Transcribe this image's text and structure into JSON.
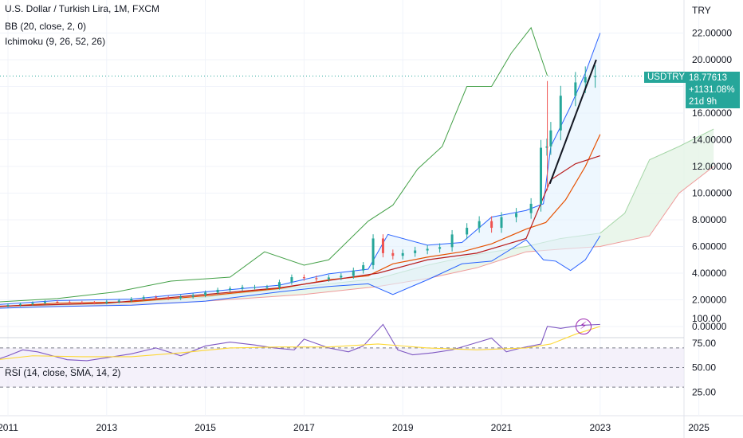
{
  "header": {
    "title": "U.S. Dollar / Turkish Lira, 1M, FXCM",
    "bb": "BB (20, close, 2, 0)",
    "ichimoku": "Ichimoku (9, 26, 52, 26)",
    "rsi": "RSI (14, close, SMA, 14, 2)"
  },
  "price_axis": {
    "currency": "TRY",
    "ticks": [
      "22.00000",
      "20.00000",
      "18.00000",
      "16.00000",
      "14.00000",
      "12.00000",
      "10.00000",
      "8.00000",
      "6.00000",
      "4.00000",
      "2.00000",
      "0.00000"
    ]
  },
  "rsi_axis": {
    "ticks": [
      "100.00",
      "75.00",
      "50.00",
      "25.00"
    ]
  },
  "time_axis": {
    "ticks": [
      "2011",
      "2013",
      "2015",
      "2017",
      "2019",
      "2021",
      "2023",
      "2025"
    ]
  },
  "last_price": {
    "symbol": "USDTRY",
    "price": "18.77613",
    "change": "+1131.08%",
    "countdown": "21d 9h"
  },
  "colors": {
    "up": "#26a69a",
    "down": "#ef5350",
    "bb_basis": "#e65100",
    "bb_band": "#2962ff",
    "ich_conv": "#2962ff",
    "ich_base": "#b71c1c",
    "ich_lag": "#43a047",
    "cloud_a": "#a5d6a7",
    "cloud_b": "#ef9a9a",
    "rsi": "#7e57c2",
    "rsi_ma": "#fdd835",
    "badge": "#26a69a"
  },
  "icons": {
    "flash": "lightning-icon"
  },
  "chart_data": [
    {
      "type": "candlestick",
      "title": "U.S. Dollar / Turkish Lira, 1M, FXCM",
      "y_range": [
        0,
        22
      ],
      "x_range": [
        2010.5,
        2025.3
      ],
      "series": [
        {
          "name": "USDTRY",
          "points": [
            [
              2010.6,
              1.5
            ],
            [
              2011.0,
              1.55
            ],
            [
              2011.5,
              1.68
            ],
            [
              2012.0,
              1.85
            ],
            [
              2012.5,
              1.8
            ],
            [
              2013.0,
              1.78
            ],
            [
              2013.5,
              1.95
            ],
            [
              2014.0,
              2.2
            ],
            [
              2014.5,
              2.12
            ],
            [
              2015.0,
              2.35
            ],
            [
              2015.5,
              2.75
            ],
            [
              2016.0,
              2.95
            ],
            [
              2016.5,
              2.95
            ],
            [
              2017.0,
              3.7
            ],
            [
              2017.5,
              3.55
            ],
            [
              2018.0,
              3.8
            ],
            [
              2018.4,
              4.6
            ],
            [
              2018.6,
              6.6
            ],
            [
              2018.8,
              5.5
            ],
            [
              2019.0,
              5.3
            ],
            [
              2019.5,
              5.7
            ],
            [
              2020.0,
              5.95
            ],
            [
              2020.3,
              6.9
            ],
            [
              2020.8,
              7.9
            ],
            [
              2021.0,
              7.4
            ],
            [
              2021.3,
              8.2
            ],
            [
              2021.6,
              8.5
            ],
            [
              2021.8,
              9.2
            ],
            [
              2021.92,
              13.4
            ],
            [
              2022.0,
              13.5
            ],
            [
              2022.2,
              14.7
            ],
            [
              2022.5,
              17.3
            ],
            [
              2022.7,
              18.3
            ],
            [
              2022.9,
              18.7
            ],
            [
              2023.0,
              18.78
            ]
          ]
        }
      ]
    },
    {
      "type": "line",
      "title": "RSI (14, close, SMA, 14, 2)",
      "y_range": [
        25,
        100
      ],
      "series": [
        {
          "name": "RSI",
          "points": [
            [
              2010.6,
              55
            ],
            [
              2011.0,
              62
            ],
            [
              2011.3,
              68
            ],
            [
              2011.6,
              66
            ],
            [
              2011.9,
              62
            ],
            [
              2012.2,
              58
            ],
            [
              2012.6,
              57
            ],
            [
              2013.0,
              60
            ],
            [
              2013.5,
              64
            ],
            [
              2014.0,
              70
            ],
            [
              2014.5,
              62
            ],
            [
              2015.0,
              72
            ],
            [
              2015.5,
              76
            ],
            [
              2016.0,
              73
            ],
            [
              2016.4,
              70
            ],
            [
              2016.8,
              68
            ],
            [
              2017.0,
              79
            ],
            [
              2017.5,
              70
            ],
            [
              2017.9,
              66
            ],
            [
              2018.2,
              72
            ],
            [
              2018.6,
              94
            ],
            [
              2018.9,
              68
            ],
            [
              2019.2,
              63
            ],
            [
              2019.6,
              65
            ],
            [
              2020.0,
              68
            ],
            [
              2020.4,
              74
            ],
            [
              2020.8,
              80
            ],
            [
              2021.1,
              66
            ],
            [
              2021.4,
              70
            ],
            [
              2021.8,
              74
            ],
            [
              2021.93,
              92
            ],
            [
              2022.2,
              90
            ],
            [
              2022.6,
              93
            ],
            [
              2023.0,
              94
            ]
          ]
        },
        {
          "name": "RSI-based MA",
          "points": [
            [
              2010.6,
              57
            ],
            [
              2011.5,
              62
            ],
            [
              2012.5,
              61
            ],
            [
              2013.5,
              61
            ],
            [
              2014.5,
              65
            ],
            [
              2015.5,
              70
            ],
            [
              2016.5,
              71
            ],
            [
              2017.5,
              71
            ],
            [
              2018.5,
              74
            ],
            [
              2019.5,
              70
            ],
            [
              2020.5,
              68
            ],
            [
              2021.5,
              70
            ],
            [
              2022.0,
              74
            ],
            [
              2022.5,
              84
            ],
            [
              2023.0,
              92
            ]
          ]
        }
      ]
    }
  ]
}
